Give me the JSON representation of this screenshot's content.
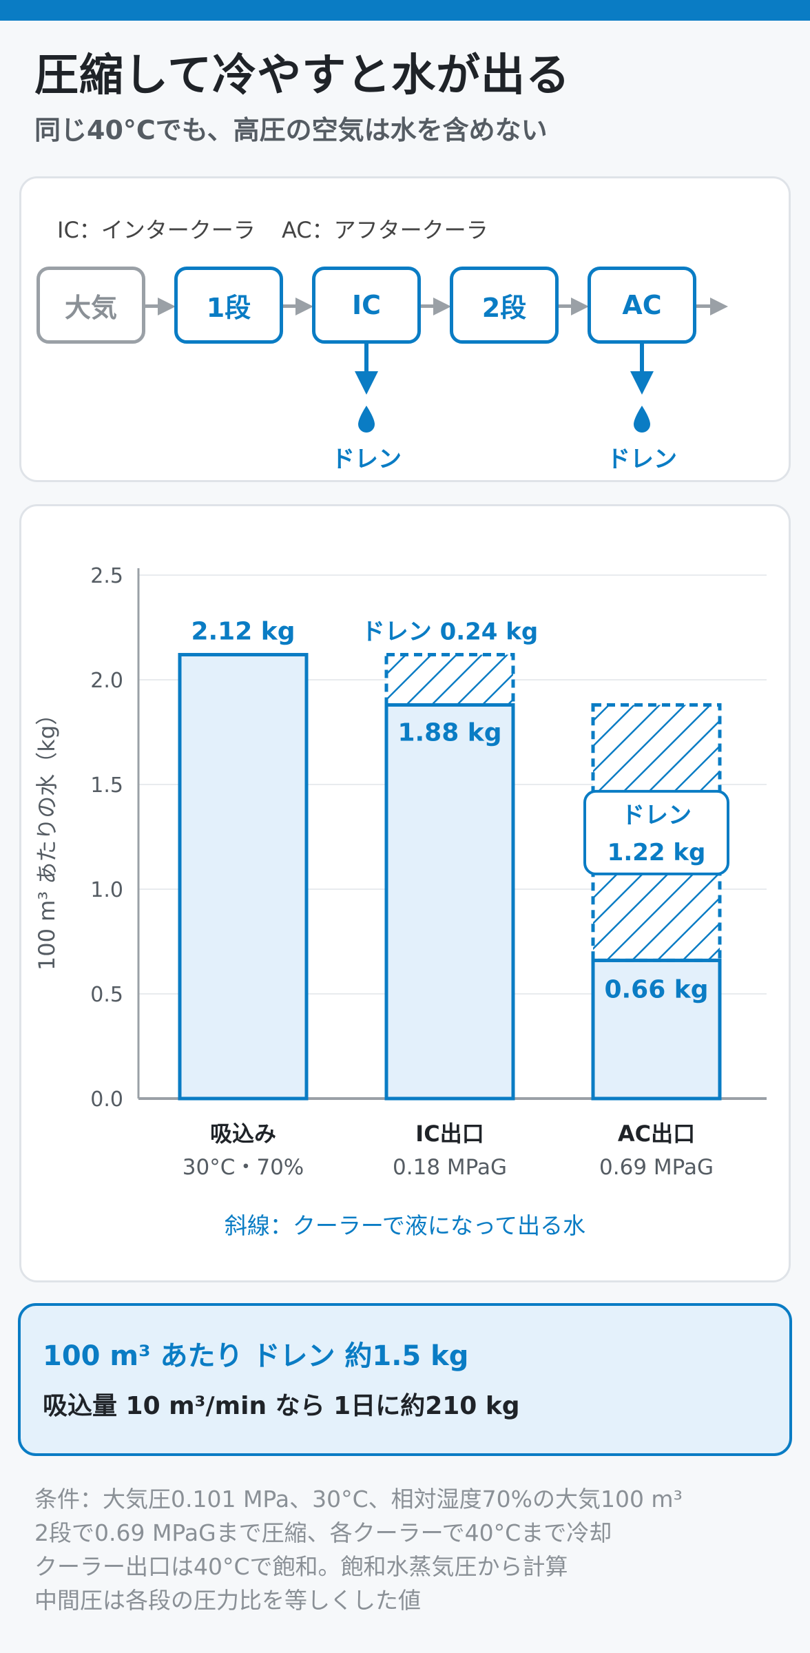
{
  "header": {
    "title": "圧縮して冷やすと水が出る",
    "subtitle": "同じ40°Cでも、高圧の空気は水を含めない"
  },
  "flow": {
    "legend_ic": "IC：インタークーラ",
    "legend_ac": "AC：アフタークーラ",
    "stages": [
      "大気",
      "1段",
      "IC",
      "2段",
      "AC"
    ],
    "drain_label": "ドレン"
  },
  "chart_data": {
    "type": "bar",
    "ylabel": "100 m³ あたりの水（kg）",
    "ylim": [
      0,
      2.5
    ],
    "yticks": [
      "0.0",
      "0.5",
      "1.0",
      "1.5",
      "2.0",
      "2.5"
    ],
    "categories": [
      "吸込み",
      "IC出口",
      "AC出口"
    ],
    "category_sublabels": [
      "30°C・70%",
      "0.18 MPaG",
      "0.69 MPaG"
    ],
    "values": [
      2.12,
      1.88,
      0.66
    ],
    "value_labels": [
      "2.12 kg",
      "1.88 kg",
      "0.66 kg"
    ],
    "drain": [
      {
        "category": "IC出口",
        "from": 1.88,
        "to": 2.12,
        "label": "ドレン 0.24 kg"
      },
      {
        "category": "AC出口",
        "from": 0.66,
        "to": 1.88,
        "label_top": "ドレン",
        "label_bottom": "1.22 kg"
      }
    ],
    "note": "斜線：クーラーで液になって出る水",
    "colors": {
      "bar_fill": "#e3f0fb",
      "bar_stroke": "#0a7cc4",
      "axis": "#9aa0a6",
      "grid": "#e8ebee"
    }
  },
  "summary": {
    "main": "100 m³ あたり ドレン 約1.5 kg",
    "sub": "吸込量 10 m³/min なら 1日に約210 kg"
  },
  "notes": [
    "条件：大気圧0.101 MPa、30°C、相対湿度70%の大気100 m³",
    "2段で0.69 MPaGまで圧縮、各クーラーで40°Cまで冷却",
    "クーラー出口は40°Cで飽和。飽和水蒸気圧から計算",
    "中間圧は各段の圧力比を等しくした値"
  ]
}
